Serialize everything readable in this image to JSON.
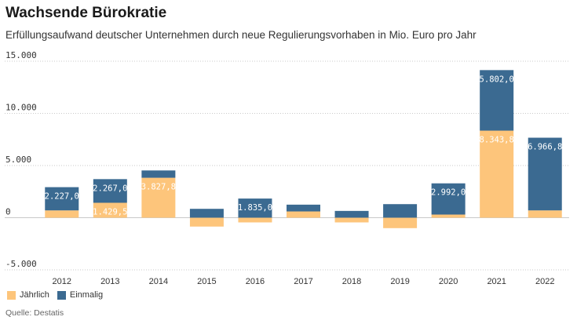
{
  "header": {
    "title": "Wachsende Bürokratie",
    "subtitle": "Erfüllungsaufwand deutscher Unternehmen durch neue Regulierungsvorhaben in Mio. Euro pro Jahr"
  },
  "chart_data": {
    "type": "bar",
    "stacked": true,
    "categories": [
      "2012",
      "2013",
      "2014",
      "2015",
      "2016",
      "2017",
      "2018",
      "2019",
      "2020",
      "2021",
      "2022"
    ],
    "series": [
      {
        "name": "Jährlich",
        "color": "#fdc57b",
        "values": [
          700,
          1429.5,
          3827.8,
          -850,
          -450,
          600,
          -450,
          -1000,
          300,
          8343.8,
          700
        ],
        "labels": [
          "",
          "1.429,5",
          "3.827,8",
          "",
          "",
          "",
          "",
          "",
          "",
          "8.343,8",
          ""
        ]
      },
      {
        "name": "Einmalig",
        "color": "#3b6a91",
        "values": [
          2227.0,
          2267.0,
          700,
          850,
          1835.0,
          650,
          650,
          1300,
          2992.0,
          5802.0,
          6966.8
        ],
        "labels": [
          "2.227,0",
          "2.267,0",
          "",
          "",
          "1.835,0",
          "",
          "",
          "",
          "2.992,0",
          "5.802,0",
          "6.966,8"
        ]
      }
    ],
    "yticks": [
      15000,
      10000,
      5000,
      0,
      -5000
    ],
    "ytick_labels": [
      "15.000",
      "10.000",
      "5.000",
      "0",
      "-5.000"
    ],
    "ylim": [
      -5000,
      15000
    ],
    "grid": true,
    "legend_position": "bottom-left"
  },
  "legend": {
    "items": [
      {
        "label": "Jährlich",
        "color": "#fdc57b"
      },
      {
        "label": "Einmalig",
        "color": "#3b6a91"
      }
    ]
  },
  "footer": {
    "source": "Quelle: Destatis"
  }
}
